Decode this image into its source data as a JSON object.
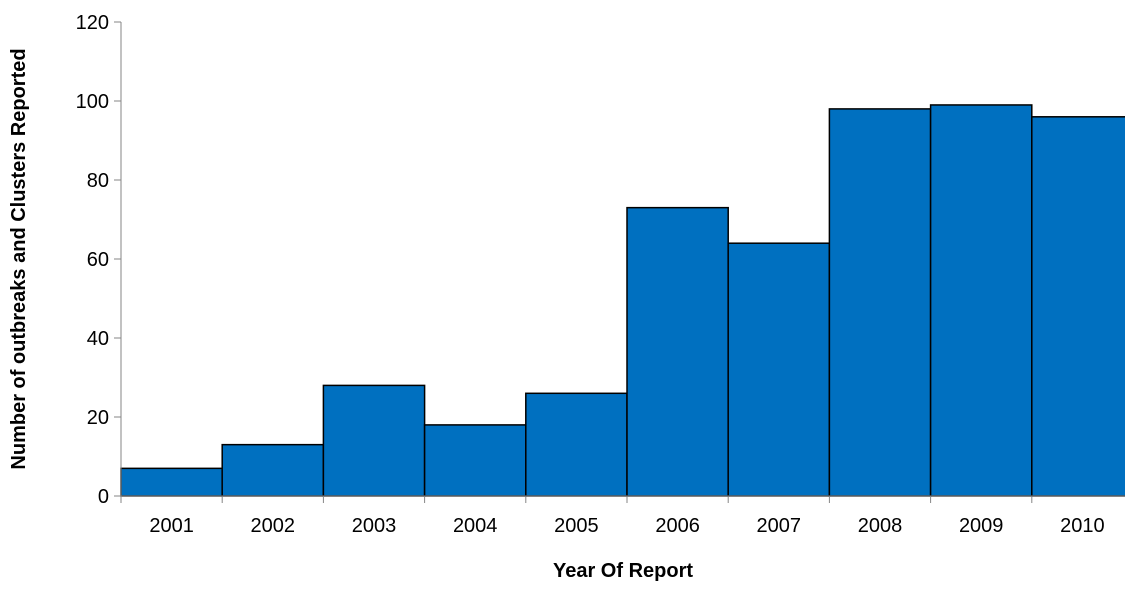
{
  "chart_data": {
    "type": "bar",
    "categories": [
      "2001",
      "2002",
      "2003",
      "2004",
      "2005",
      "2006",
      "2007",
      "2008",
      "2009",
      "2010"
    ],
    "values": [
      7,
      13,
      28,
      18,
      26,
      73,
      64,
      98,
      99,
      96
    ],
    "xlabel": "Year Of Report",
    "ylabel": "Number of outbreaks and Clusters Reported",
    "ylim": [
      0,
      120
    ],
    "yticks": [
      "0",
      "20",
      "40",
      "60",
      "80",
      "100",
      "120"
    ],
    "grid": false,
    "legend": "none",
    "colors": {
      "bar_fill": "#0070C0",
      "bar_stroke": "#000000",
      "axis": "#868686"
    }
  }
}
